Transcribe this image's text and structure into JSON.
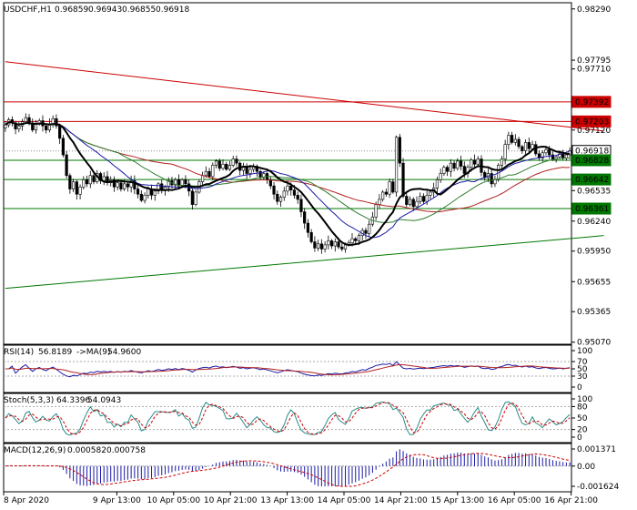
{
  "header": {
    "symbol": "USDCHF,H1",
    "open": "0.96859",
    "high": "0.96943",
    "low": "0.96855",
    "close": "0.96918"
  },
  "rsi_header": {
    "label": "RSI(14)",
    "value": "56.8189",
    "ma_label": "->MA(9)",
    "ma_value": "54.9600"
  },
  "stoch_header": {
    "label": "Stoch(5,3,3)",
    "k": "64.3396",
    "d": "54.0943"
  },
  "macd_header": {
    "label": "MACD(12,26,9)",
    "macd": "0.000582",
    "signal": "0.000758"
  },
  "colors": {
    "up_candle": "#ffffff",
    "down_candle": "#000000",
    "resistance": "#cc0000",
    "support": "#007700",
    "ma_black": "#000000",
    "ma_blue": "#1a1aa6",
    "ma_green": "#2e7d2e",
    "ma_red": "#b22222",
    "rsi_line": "#1a1aa6",
    "rsi_ma": "#b22222",
    "stoch_k": "#2a8a8a",
    "stoch_d": "#cc0000",
    "macd_bar": "#1a1aa6",
    "macd_signal": "#cc0000"
  },
  "chart_data": [
    {
      "type": "candlestick",
      "title": "USDCHF,H1",
      "x_labels": [
        "8 Apr 2020",
        "9 Apr 13:00",
        "10 Apr 05:00",
        "10 Apr 21:00",
        "13 Apr 13:00",
        "14 Apr 05:00",
        "14 Apr 21:00",
        "15 Apr 13:00",
        "16 Apr 05:00",
        "16 Apr 21:00"
      ],
      "y_ticks": [
        "0.98290",
        "0.97795",
        "0.97710",
        "0.97392",
        "0.97203",
        "0.97120",
        "0.96918",
        "0.96828",
        "0.96642",
        "0.96535",
        "0.96361",
        "0.96240",
        "0.95950",
        "0.95655",
        "0.95365",
        "0.95070"
      ],
      "ylim": [
        0.9505,
        0.9835
      ],
      "price_tags": [
        {
          "value": "0.97392",
          "kind": "resistance"
        },
        {
          "value": "0.97203",
          "kind": "resistance"
        },
        {
          "value": "0.96918",
          "kind": "current"
        },
        {
          "value": "0.96828",
          "kind": "support"
        },
        {
          "value": "0.96642",
          "kind": "support"
        },
        {
          "value": "0.96361",
          "kind": "support"
        }
      ],
      "horizontal_levels": [
        {
          "value": 0.97392,
          "kind": "resistance"
        },
        {
          "value": 0.97203,
          "kind": "resistance"
        },
        {
          "value": 0.96828,
          "kind": "support"
        },
        {
          "value": 0.96642,
          "kind": "support"
        },
        {
          "value": 0.96361,
          "kind": "support"
        }
      ],
      "trend_lines": [
        {
          "kind": "resistance",
          "from": [
            0,
            0.9778
          ],
          "to": [
            176,
            0.9711
          ]
        },
        {
          "kind": "support",
          "from": [
            0,
            0.9559
          ],
          "to": [
            176,
            0.961
          ]
        }
      ],
      "closes": [
        0.9717,
        0.9722,
        0.9719,
        0.9713,
        0.9716,
        0.972,
        0.9724,
        0.9719,
        0.9712,
        0.9718,
        0.9721,
        0.9716,
        0.9712,
        0.9718,
        0.9723,
        0.9716,
        0.9704,
        0.9688,
        0.9668,
        0.9655,
        0.9662,
        0.965,
        0.9657,
        0.9664,
        0.966,
        0.9668,
        0.9662,
        0.967,
        0.9663,
        0.9667,
        0.9661,
        0.9664,
        0.9657,
        0.9661,
        0.9655,
        0.966,
        0.9657,
        0.9663,
        0.9655,
        0.965,
        0.9644,
        0.9649,
        0.9655,
        0.9649,
        0.9653,
        0.966,
        0.9654,
        0.9657,
        0.9663,
        0.9659,
        0.9664,
        0.9658,
        0.9664,
        0.966,
        0.9653,
        0.964,
        0.9652,
        0.9662,
        0.9668,
        0.9672,
        0.9667,
        0.9678,
        0.9682,
        0.9675,
        0.9679,
        0.9674,
        0.9678,
        0.9684,
        0.968,
        0.9673,
        0.9677,
        0.967,
        0.9674,
        0.9677,
        0.9672,
        0.9666,
        0.967,
        0.9664,
        0.9658,
        0.965,
        0.9643,
        0.9647,
        0.9653,
        0.9658,
        0.9654,
        0.9649,
        0.9645,
        0.9633,
        0.9622,
        0.9613,
        0.9604,
        0.9598,
        0.9602,
        0.9597,
        0.9601,
        0.9605,
        0.96,
        0.9604,
        0.9599,
        0.9597,
        0.9601,
        0.9603,
        0.9607,
        0.9605,
        0.961,
        0.9615,
        0.9612,
        0.9621,
        0.9628,
        0.964,
        0.9645,
        0.9652,
        0.965,
        0.9662,
        0.9652,
        0.9705,
        0.968,
        0.9648,
        0.964,
        0.9645,
        0.9638,
        0.9643,
        0.9648,
        0.9643,
        0.9649,
        0.9652,
        0.9656,
        0.9664,
        0.967,
        0.9676,
        0.9672,
        0.968,
        0.9675,
        0.9682,
        0.9677,
        0.967,
        0.9676,
        0.9683,
        0.9679,
        0.9684,
        0.9671,
        0.9666,
        0.967,
        0.966,
        0.9664,
        0.9678,
        0.9684,
        0.9698,
        0.9707,
        0.97,
        0.9703,
        0.9696,
        0.9692,
        0.97,
        0.9694,
        0.9698,
        0.9689,
        0.9685,
        0.969,
        0.9693,
        0.9688,
        0.9684,
        0.9686,
        0.9689,
        0.9685,
        0.9688,
        0.9692
      ]
    },
    {
      "type": "line",
      "title": "RSI(14) 56.8189 ->MA(9) 54.9600",
      "y_ticks": [
        "100",
        "70",
        "50",
        "30",
        "0"
      ],
      "ylim": [
        0,
        100
      ]
    },
    {
      "type": "line",
      "title": "Stoch(5,3,3) 64.3396 54.0943",
      "y_ticks": [
        "100",
        "80",
        "50",
        "20",
        "0"
      ],
      "ylim": [
        0,
        100
      ]
    },
    {
      "type": "bar",
      "title": "MACD(12,26,9) 0.000582 0.000758",
      "y_ticks": [
        "0.001371",
        "0.00",
        "-0.001624"
      ],
      "ylim": [
        -0.001624,
        0.001371
      ]
    }
  ]
}
